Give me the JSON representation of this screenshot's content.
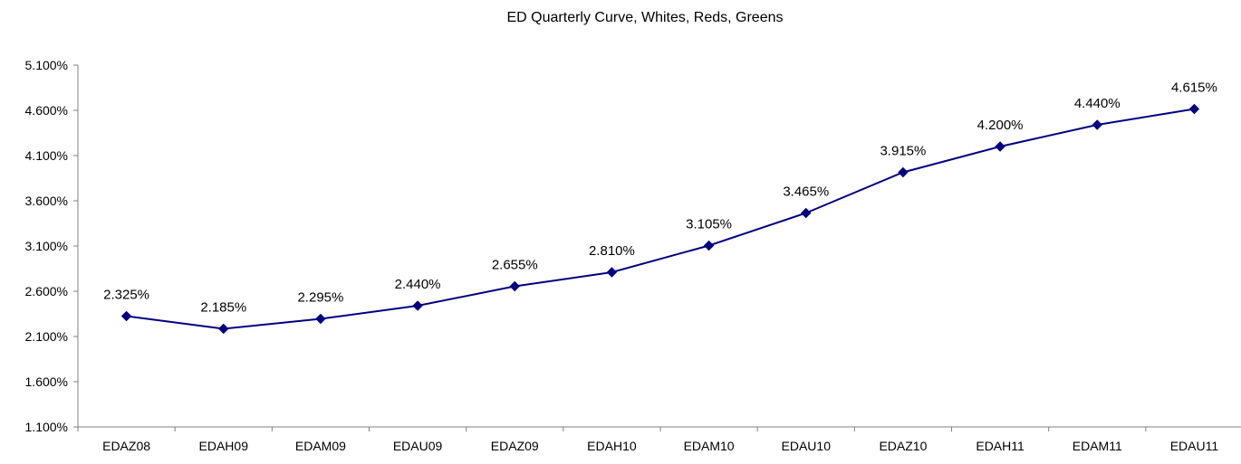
{
  "chart_data": {
    "type": "line",
    "title": "ED Quarterly Curve, Whites, Reds, Greens",
    "xlabel": "",
    "ylabel": "",
    "categories": [
      "EDAZ08",
      "EDAH09",
      "EDAM09",
      "EDAU09",
      "EDAZ09",
      "EDAH10",
      "EDAM10",
      "EDAU10",
      "EDAZ10",
      "EDAH11",
      "EDAM11",
      "EDAU11"
    ],
    "series": [
      {
        "values": [
          2.325,
          2.185,
          2.295,
          2.44,
          2.655,
          2.81,
          3.105,
          3.465,
          3.915,
          4.2,
          4.44,
          4.615
        ],
        "labels": [
          "2.325%",
          "2.185%",
          "2.295%",
          "2.440%",
          "2.655%",
          "2.810%",
          "3.105%",
          "3.465%",
          "3.915%",
          "4.200%",
          "4.440%",
          "4.615%"
        ],
        "color": "#000080",
        "marker": "diamond"
      }
    ],
    "ylim": [
      1.1,
      5.1
    ],
    "yticks": [
      1.1,
      1.6,
      2.1,
      2.6,
      3.1,
      3.6,
      4.1,
      4.6,
      5.1
    ],
    "ytick_labels": [
      "1.100%",
      "1.600%",
      "2.100%",
      "2.600%",
      "3.100%",
      "3.600%",
      "4.100%",
      "4.600%",
      "5.100%"
    ],
    "grid": false,
    "legend": "none"
  }
}
